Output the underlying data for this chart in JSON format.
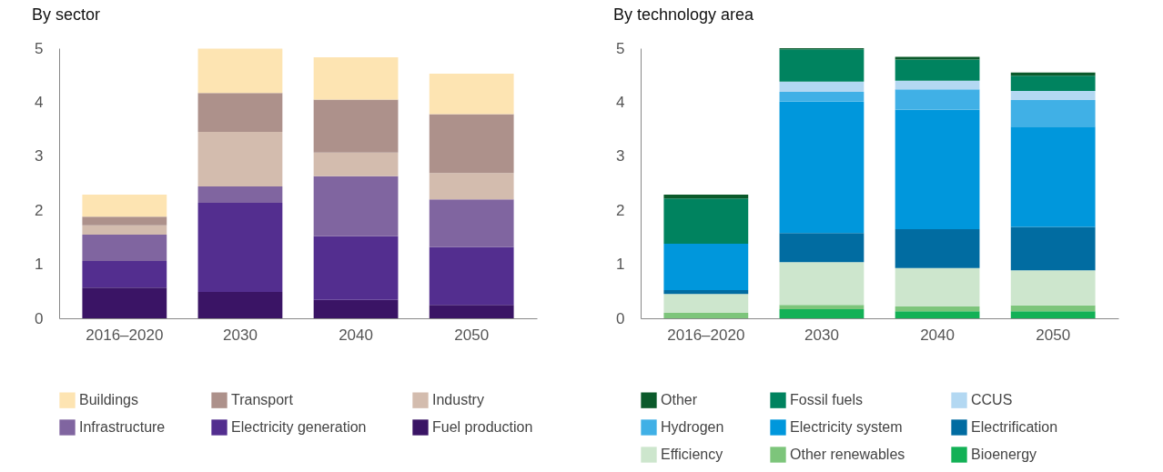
{
  "chart_data": [
    {
      "type": "bar",
      "title": "By sector",
      "stacked": true,
      "legend": "bottom",
      "categories": [
        "2016–2020",
        "2030",
        "2040",
        "2050"
      ],
      "ylim": [
        0,
        5
      ],
      "yticks": [
        0,
        1,
        2,
        3,
        4,
        5
      ],
      "series": [
        {
          "name": "Fuel production",
          "color": "#3a1465",
          "values": [
            0.57,
            0.49,
            0.34,
            0.25
          ]
        },
        {
          "name": "Electricity generation",
          "color": "#532e8f",
          "values": [
            0.49,
            1.65,
            1.18,
            1.07
          ]
        },
        {
          "name": "Infrastructure",
          "color": "#8065a0",
          "values": [
            0.49,
            0.3,
            1.11,
            0.88
          ]
        },
        {
          "name": "Industry",
          "color": "#d3bcae",
          "values": [
            0.17,
            1.01,
            0.44,
            0.49
          ]
        },
        {
          "name": "Transport",
          "color": "#ad918b",
          "values": [
            0.16,
            0.72,
            0.98,
            1.09
          ]
        },
        {
          "name": "Buildings",
          "color": "#fde4b2",
          "values": [
            0.41,
            0.82,
            0.78,
            0.75
          ]
        }
      ]
    },
    {
      "type": "bar",
      "title": "By technology area",
      "stacked": true,
      "legend": "bottom",
      "categories": [
        "2016–2020",
        "2030",
        "2040",
        "2050"
      ],
      "ylim": [
        0,
        5
      ],
      "yticks": [
        0,
        1,
        2,
        3,
        4,
        5
      ],
      "series": [
        {
          "name": "Bioenergy",
          "color": "#13b156",
          "values": [
            0,
            0.17,
            0.13,
            0.13
          ]
        },
        {
          "name": "Other renewables",
          "color": "#7dc57b",
          "values": [
            0.1,
            0.08,
            0.09,
            0.11
          ]
        },
        {
          "name": "Efficiency",
          "color": "#cde6cd",
          "values": [
            0.35,
            0.79,
            0.71,
            0.65
          ]
        },
        {
          "name": "Electrification",
          "color": "#016ca1",
          "values": [
            0.07,
            0.54,
            0.72,
            0.8
          ]
        },
        {
          "name": "Electricity system",
          "color": "#0097dc",
          "values": [
            0.86,
            2.43,
            2.21,
            1.86
          ]
        },
        {
          "name": "Hydrogen",
          "color": "#40b0e6",
          "values": [
            0,
            0.18,
            0.38,
            0.49
          ]
        },
        {
          "name": "CCUS",
          "color": "#b3d8f2",
          "values": [
            0,
            0.19,
            0.16,
            0.17
          ]
        },
        {
          "name": "Fossil fuels",
          "color": "#00835f",
          "values": [
            0.84,
            0.6,
            0.39,
            0.28
          ]
        },
        {
          "name": "Other",
          "color": "#0b5a2b",
          "values": [
            0.07,
            0.02,
            0.05,
            0.06
          ]
        }
      ]
    }
  ]
}
